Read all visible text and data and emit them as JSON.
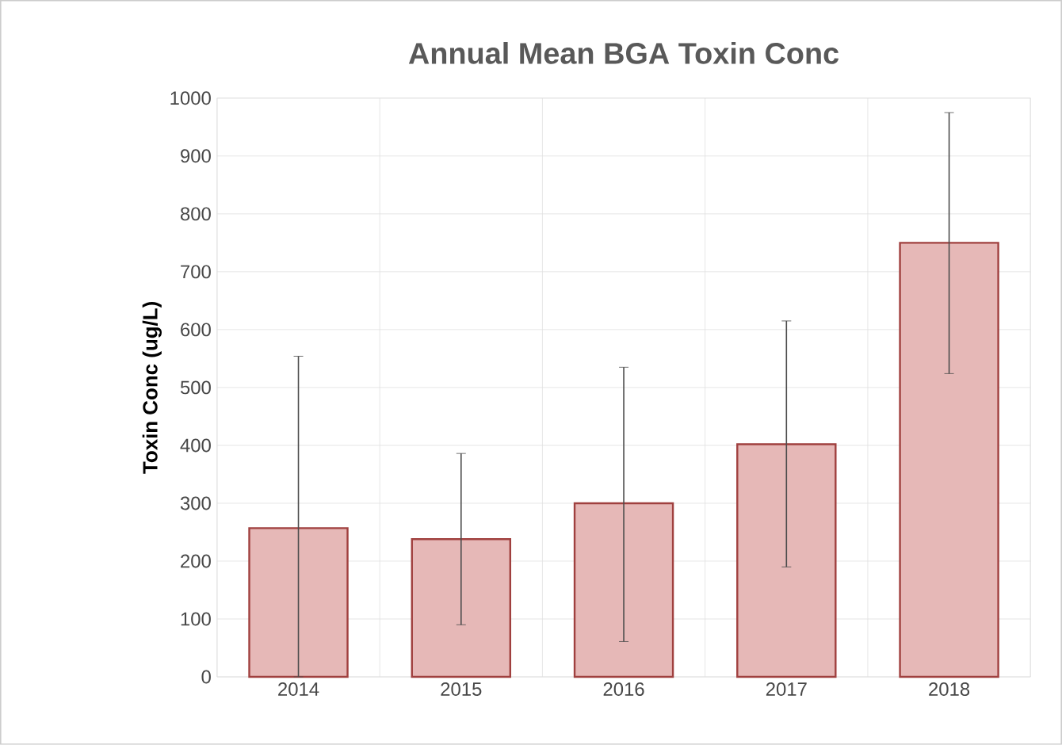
{
  "chart_data": {
    "type": "bar",
    "title": "Annual Mean BGA Toxin Conc",
    "ylabel": "Toxin Conc (ug/L)",
    "categories": [
      "2014",
      "2015",
      "2016",
      "2017",
      "2018"
    ],
    "values": [
      257,
      238,
      300,
      402,
      750
    ],
    "errors": [
      [
        0,
        554
      ],
      [
        90,
        386
      ],
      [
        61,
        535
      ],
      [
        190,
        615
      ],
      [
        524,
        975
      ]
    ],
    "color": "#e6b8b7",
    "ylim": [
      0,
      1000
    ],
    "yticks": [
      0,
      100,
      200,
      300,
      400,
      500,
      600,
      700,
      800,
      900,
      1000
    ],
    "grid": true
  }
}
